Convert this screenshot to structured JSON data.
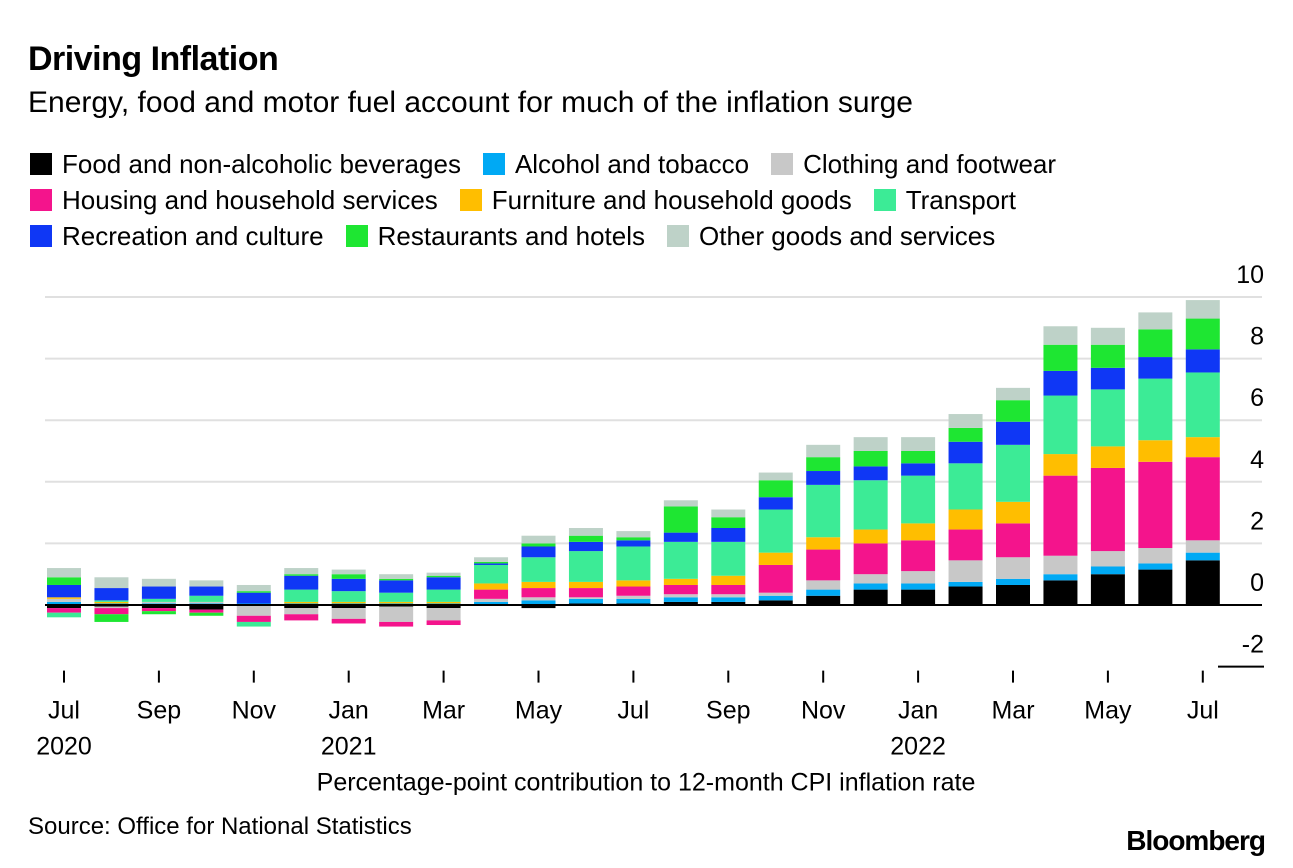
{
  "title": "Driving Inflation",
  "subtitle": "Energy, food and motor fuel account for much of the inflation surge",
  "source": "Source: Office for National Statistics",
  "brand": "Bloomberg",
  "chart_data": {
    "type": "stacked-bar",
    "xlabel": "Percentage-point contribution to 12-month CPI inflation rate",
    "ylabel": "",
    "ylim": [
      -2,
      10
    ],
    "y_ticks": [
      "10",
      "8",
      "6",
      "4",
      "2",
      "0",
      "-2"
    ],
    "y_tick_values": [
      10,
      8,
      6,
      4,
      2,
      0,
      -2
    ],
    "grid": true,
    "months": [
      "Jul 2020",
      "Aug 2020",
      "Sep 2020",
      "Oct 2020",
      "Nov 2020",
      "Dec 2020",
      "Jan 2021",
      "Feb 2021",
      "Mar 2021",
      "Apr 2021",
      "May 2021",
      "Jun 2021",
      "Jul 2021",
      "Aug 2021",
      "Sep 2021",
      "Oct 2021",
      "Nov 2021",
      "Dec 2021",
      "Jan 2022",
      "Feb 2022",
      "Mar 2022",
      "Apr 2022",
      "May 2022",
      "Jun 2022",
      "Jul 2022"
    ],
    "x_ticks": [
      {
        "index": 0,
        "label": "Jul",
        "year": "2020"
      },
      {
        "index": 2,
        "label": "Sep",
        "year": ""
      },
      {
        "index": 4,
        "label": "Nov",
        "year": ""
      },
      {
        "index": 6,
        "label": "Jan",
        "year": "2021"
      },
      {
        "index": 8,
        "label": "Mar",
        "year": ""
      },
      {
        "index": 10,
        "label": "May",
        "year": ""
      },
      {
        "index": 12,
        "label": "Jul",
        "year": ""
      },
      {
        "index": 14,
        "label": "Sep",
        "year": ""
      },
      {
        "index": 16,
        "label": "Nov",
        "year": ""
      },
      {
        "index": 18,
        "label": "Jan",
        "year": "2022"
      },
      {
        "index": 20,
        "label": "Mar",
        "year": ""
      },
      {
        "index": 22,
        "label": "May",
        "year": ""
      },
      {
        "index": 24,
        "label": "Jul",
        "year": ""
      }
    ],
    "legend_rows": [
      [
        0,
        1,
        2
      ],
      [
        3,
        4,
        5
      ],
      [
        6,
        7,
        8
      ]
    ],
    "series": [
      {
        "name": "Food and non-alcoholic beverages",
        "color": "#000000",
        "values": [
          -0.1,
          -0.05,
          -0.1,
          -0.15,
          0,
          -0.1,
          -0.1,
          -0.05,
          -0.1,
          0,
          -0.1,
          0.05,
          0.05,
          0.1,
          0.1,
          0.15,
          0.3,
          0.5,
          0.5,
          0.6,
          0.65,
          0.8,
          1.0,
          1.15,
          1.45
        ]
      },
      {
        "name": "Alcohol and tobacco",
        "color": "#00a9f4",
        "values": [
          0.1,
          0.05,
          0.05,
          0.05,
          0.05,
          0.05,
          0.05,
          0.05,
          0.05,
          0.1,
          0.15,
          0.15,
          0.15,
          0.15,
          0.15,
          0.15,
          0.2,
          0.2,
          0.2,
          0.15,
          0.2,
          0.2,
          0.25,
          0.2,
          0.25
        ]
      },
      {
        "name": "Clothing and footwear",
        "color": "#c8c8c8",
        "values": [
          0.1,
          -0.05,
          0.05,
          0.05,
          -0.35,
          -0.2,
          -0.35,
          -0.5,
          -0.4,
          0.1,
          0.1,
          0.05,
          0.1,
          0.1,
          0.1,
          0.1,
          0.3,
          0.3,
          0.4,
          0.7,
          0.7,
          0.6,
          0.5,
          0.5,
          0.4
        ]
      },
      {
        "name": "Housing and household services",
        "color": "#f4148c",
        "values": [
          -0.15,
          -0.2,
          -0.1,
          -0.1,
          -0.2,
          -0.2,
          -0.15,
          -0.15,
          -0.15,
          0.3,
          0.3,
          0.3,
          0.3,
          0.3,
          0.3,
          0.9,
          1.0,
          1.0,
          1.0,
          1.0,
          1.1,
          2.6,
          2.7,
          2.8,
          2.7
        ]
      },
      {
        "name": "Furniture and household goods",
        "color": "#ffbe00",
        "values": [
          0.05,
          0.05,
          0,
          0,
          0,
          0.05,
          0.05,
          0.05,
          0.05,
          0.2,
          0.2,
          0.2,
          0.2,
          0.2,
          0.3,
          0.4,
          0.4,
          0.45,
          0.55,
          0.65,
          0.7,
          0.7,
          0.7,
          0.7,
          0.65
        ]
      },
      {
        "name": "Transport",
        "color": "#3ceb96",
        "values": [
          -0.15,
          0.05,
          0.1,
          0.2,
          -0.15,
          0.4,
          0.35,
          0.3,
          0.4,
          0.6,
          0.8,
          1.0,
          1.1,
          1.2,
          1.1,
          1.4,
          1.7,
          1.6,
          1.55,
          1.5,
          1.85,
          1.9,
          1.85,
          2.0,
          2.1
        ]
      },
      {
        "name": "Recreation and culture",
        "color": "#0f37f5",
        "values": [
          0.4,
          0.4,
          0.4,
          0.3,
          0.35,
          0.45,
          0.4,
          0.4,
          0.4,
          0.05,
          0.35,
          0.3,
          0.2,
          0.3,
          0.45,
          0.4,
          0.45,
          0.45,
          0.4,
          0.7,
          0.75,
          0.8,
          0.7,
          0.7,
          0.75
        ]
      },
      {
        "name": "Restaurants and hotels",
        "color": "#1ee632",
        "values": [
          0.25,
          -0.25,
          -0.1,
          -0.1,
          0.05,
          0.05,
          0.15,
          0.05,
          0.05,
          0.05,
          0.1,
          0.2,
          0.1,
          0.85,
          0.35,
          0.55,
          0.45,
          0.5,
          0.4,
          0.45,
          0.7,
          0.85,
          0.75,
          0.9,
          1.0
        ]
      },
      {
        "name": "Other goods and services",
        "color": "#bed2c8",
        "values": [
          0.3,
          0.35,
          0.25,
          0.2,
          0.2,
          0.2,
          0.15,
          0.15,
          0.1,
          0.15,
          0.25,
          0.25,
          0.2,
          0.2,
          0.25,
          0.25,
          0.4,
          0.45,
          0.45,
          0.45,
          0.4,
          0.6,
          0.55,
          0.55,
          0.6
        ]
      }
    ]
  }
}
